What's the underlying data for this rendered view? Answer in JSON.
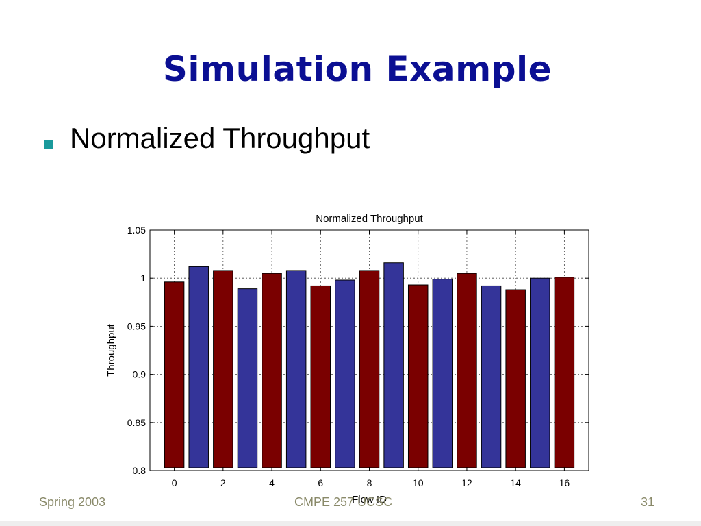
{
  "slide": {
    "title": "Simulation Example",
    "bullet": "Normalized Throughput",
    "bullet_color": "#1a9a9c",
    "footer_left": "Spring 2003",
    "footer_center": "CMPE 257 UCSC",
    "footer_right": "31"
  },
  "chart_data": {
    "type": "bar",
    "title": "Normalized Throughput",
    "xlabel": "Flow ID",
    "ylabel": "Throughput",
    "x": [
      0,
      1,
      2,
      3,
      4,
      5,
      6,
      7,
      8,
      9,
      10,
      11,
      12,
      13,
      14,
      15,
      16
    ],
    "values": [
      0.996,
      1.012,
      1.008,
      0.989,
      1.005,
      1.008,
      0.992,
      0.998,
      1.008,
      1.016,
      0.993,
      0.999,
      1.005,
      0.992,
      0.988,
      1.0,
      1.001
    ],
    "bar_colors": [
      "#7a0000",
      "#343499",
      "#7a0000",
      "#343499",
      "#7a0000",
      "#343499",
      "#7a0000",
      "#343499",
      "#7a0000",
      "#343499",
      "#7a0000",
      "#343499",
      "#7a0000",
      "#343499",
      "#7a0000",
      "#343499",
      "#7a0000"
    ],
    "xlim": [
      -1,
      17
    ],
    "ylim": [
      0.8,
      1.05
    ],
    "xticks": [
      0,
      2,
      4,
      6,
      8,
      10,
      12,
      14,
      16
    ],
    "yticks": [
      0.8,
      0.85,
      0.9,
      0.95,
      1,
      1.05
    ],
    "xtick_labels": [
      "0",
      "2",
      "4",
      "6",
      "8",
      "10",
      "12",
      "14",
      "16"
    ],
    "ytick_labels": [
      "0.8",
      "0.85",
      "0.9",
      "0.95",
      "1",
      "1.05"
    ],
    "grid": true
  }
}
